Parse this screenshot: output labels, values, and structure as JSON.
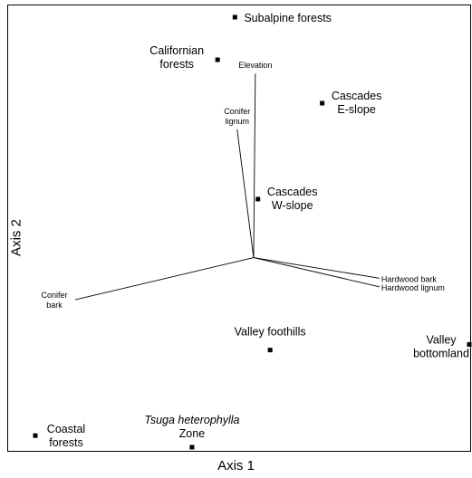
{
  "chart_data": {
    "type": "scatter",
    "title": "",
    "xlabel": "Axis 1",
    "ylabel": "Axis 2",
    "grid": false,
    "points": [
      {
        "label": [
          "Subalpine forests"
        ],
        "x": 0.46,
        "y": 1.0,
        "anchor": "start"
      },
      {
        "label": [
          "Californian",
          "forests"
        ],
        "x": 0.42,
        "y": 0.901,
        "anchor": "middle-left"
      },
      {
        "label": [
          "Cascades",
          "E-slope"
        ],
        "x": 0.661,
        "y": 0.8,
        "anchor": "middle-right"
      },
      {
        "label": [
          "Cascades",
          "W-slope"
        ],
        "x": 0.513,
        "y": 0.577,
        "anchor": "middle-right"
      },
      {
        "label": [
          "Valley foothills"
        ],
        "x": 0.541,
        "y": 0.226,
        "anchor": "above"
      },
      {
        "label": [
          "Valley",
          "bottomland"
        ],
        "x": 1.0,
        "y": 0.239,
        "anchor": "left-of"
      },
      {
        "label": [
          "Coastal",
          "forests"
        ],
        "x": 0.0,
        "y": 0.027,
        "anchor": "right"
      },
      {
        "label": [
          "Tsuga heterophylla",
          "Zone"
        ],
        "x": 0.361,
        "y": 0.0,
        "anchor": "above-italic-first"
      }
    ],
    "vectors": [
      {
        "label": [
          "Elevation"
        ],
        "x": 0.507,
        "y": 0.869
      },
      {
        "label": [
          "Conifer",
          "lignum"
        ],
        "x": 0.465,
        "y": 0.739
      },
      {
        "label": [
          "Hardwood bark"
        ],
        "x": 0.793,
        "y": 0.393
      },
      {
        "label": [
          "Hardwood lignum"
        ],
        "x": 0.793,
        "y": 0.373
      },
      {
        "label": [
          "Conifer",
          "bark"
        ],
        "x": 0.092,
        "y": 0.343
      }
    ],
    "vector_origin": {
      "x": 0.503,
      "y": 0.441
    }
  }
}
